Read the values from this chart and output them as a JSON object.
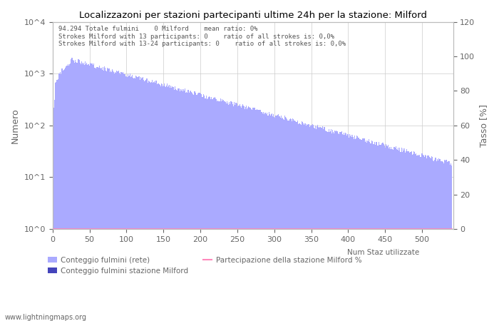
{
  "title": "Localizzazoni per stazioni partecipanti ultime 24h per la stazione: Milford",
  "annotation_lines": [
    "94.294 Totale fulmini    0 Milford    mean ratio: 0%",
    "Strokes Milford with 13 participants: 0    ratio of all strokes is: 0,0%",
    "Strokes Milford with 13-24 participants: 0    ratio of all strokes is: 0,0%"
  ],
  "ylabel_left": "Numero",
  "ylabel_right": "Tasso [%]",
  "watermark": "www.lightningmaps.org",
  "bar_color_light": "#aaaaff",
  "bar_color_dark": "#4444bb",
  "line_color": "#ff88bb",
  "ylim_right": [
    0,
    120
  ],
  "yticks_right": [
    0,
    20,
    40,
    60,
    80,
    100,
    120
  ],
  "ytick_labels_left": [
    "10^0",
    "10^1",
    "10^2",
    "10^3",
    "10^4"
  ],
  "ytick_vals_left": [
    1,
    10,
    100,
    1000,
    10000
  ],
  "xticks": [
    0,
    50,
    100,
    150,
    200,
    250,
    300,
    350,
    400,
    450,
    500
  ],
  "n_stations": 540,
  "legend_label_light": "Conteggio fulmini (rete)",
  "legend_label_dark": "Conteggio fulmini stazione Milford",
  "legend_label_line": "Partecipazione della stazione Milford %",
  "legend_label_text": "Num Staz utilizzate",
  "background_color": "#ffffff",
  "grid_color": "#cccccc",
  "font_color": "#666666"
}
